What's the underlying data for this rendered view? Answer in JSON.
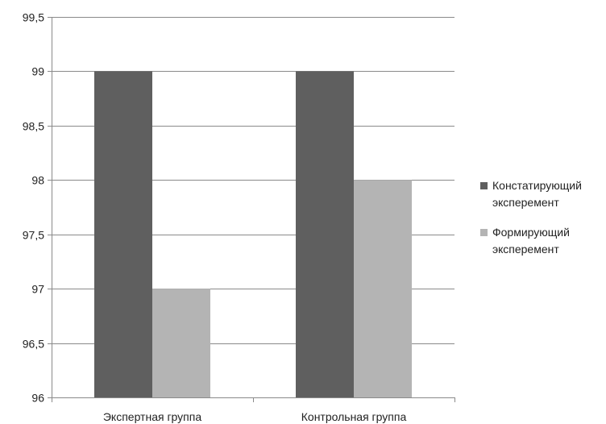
{
  "chart_data": {
    "type": "bar",
    "title": "",
    "xlabel": "",
    "ylabel": "",
    "categories": [
      "Экспертная группа",
      "Контрольная группа"
    ],
    "series": [
      {
        "name": "Констатирующий экcперемент",
        "name_lines": [
          "Констатирующий",
          "экcперемент"
        ],
        "values": [
          99,
          99
        ],
        "color": "#5f5f5f"
      },
      {
        "name": "Формирующий экcперемент",
        "name_lines": [
          "Формирующий",
          "экcперемент"
        ],
        "values": [
          97,
          98
        ],
        "color": "#b4b4b4"
      }
    ],
    "ylim": [
      96,
      99.5
    ],
    "yticks": [
      96,
      96.5,
      97,
      97.5,
      98,
      98.5,
      99,
      99.5
    ],
    "ytick_labels": [
      "96",
      "96,5",
      "97",
      "97,5",
      "98",
      "98,5",
      "99",
      "99,5"
    ],
    "grid": true,
    "legend_position": "right"
  }
}
